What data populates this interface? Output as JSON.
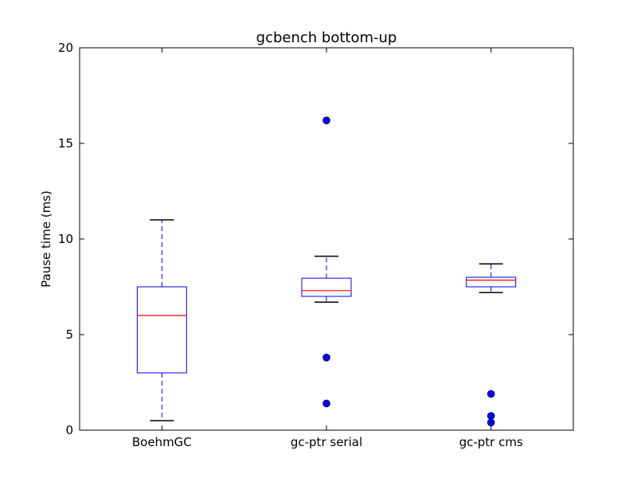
{
  "chart_data": {
    "type": "boxplot",
    "title": "gcbench bottom-up",
    "xlabel": "",
    "ylabel": "Pause time (ms)",
    "ylim": [
      0,
      20
    ],
    "yticks": [
      "0",
      "5",
      "10",
      "15",
      "20"
    ],
    "grid": false,
    "categories": [
      "BoehmGC",
      "gc-ptr serial",
      "gc-ptr cms"
    ],
    "boxes": [
      {
        "whisker_low": 0.5,
        "q1": 3.0,
        "median": 6.0,
        "q3": 7.5,
        "whisker_high": 11.0,
        "outliers": []
      },
      {
        "whisker_low": 6.7,
        "q1": 7.0,
        "median": 7.3,
        "q3": 7.95,
        "whisker_high": 9.1,
        "outliers": [
          16.2,
          3.8,
          1.4
        ]
      },
      {
        "whisker_low": 7.2,
        "q1": 7.5,
        "median": 7.85,
        "q3": 8.0,
        "whisker_high": 8.7,
        "outliers": [
          1.9,
          0.75,
          0.4
        ]
      }
    ],
    "colors": {
      "box": "#0000ff",
      "median": "#ff0000",
      "whisker": "#0000ff",
      "cap": "#000000",
      "outlier": "#0000ff"
    }
  }
}
